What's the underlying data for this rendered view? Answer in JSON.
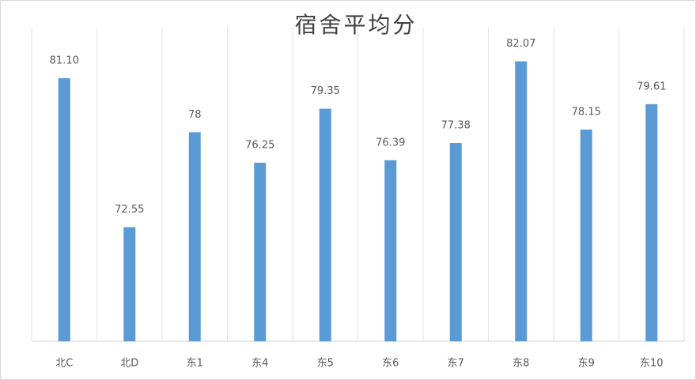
{
  "chart_data": {
    "type": "bar",
    "title": "宿舍平均分",
    "categories": [
      "北C",
      "北D",
      "东1",
      "东4",
      "东5",
      "东6",
      "东7",
      "东8",
      "东9",
      "东10"
    ],
    "values": [
      81.1,
      72.55,
      78,
      76.25,
      79.35,
      76.39,
      77.38,
      82.07,
      78.15,
      79.61
    ],
    "value_labels": [
      "81.10",
      "72.55",
      "78",
      "76.25",
      "79.35",
      "76.39",
      "77.38",
      "82.07",
      "78.15",
      "79.61"
    ],
    "color": "#5b9bd5",
    "ylim": [
      66,
      84
    ],
    "grid": true
  }
}
